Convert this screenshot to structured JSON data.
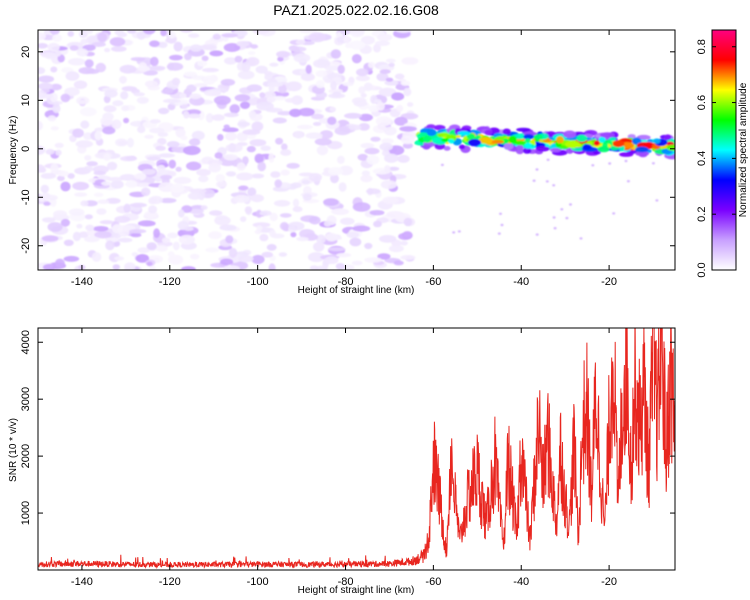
{
  "title": "PAZ1.2025.022.02.16.G08",
  "chart_data": [
    {
      "type": "heatmap",
      "xlabel": "Height of straight line (km)",
      "ylabel": "Frequency (Hz)",
      "xlim": [
        -150,
        -5
      ],
      "ylim": [
        -25,
        24.5
      ],
      "x_ticks": [
        -140,
        -120,
        -100,
        -80,
        -60,
        -40,
        -20
      ],
      "y_ticks": [
        -20,
        -10,
        0,
        10,
        20
      ],
      "colorbar": {
        "label": "Normalized spectral amplitude",
        "range": [
          0,
          0.86
        ],
        "ticks": [
          0.0,
          0.2,
          0.4,
          0.6,
          0.8
        ],
        "colors": [
          "#ffffff",
          "#c8a0ff",
          "#7a00ff",
          "#0000ff",
          "#00ffff",
          "#00ff00",
          "#ffff00",
          "#ff0000",
          "#ff0080"
        ]
      },
      "regions": [
        {
          "x_range": [
            -150,
            -65
          ],
          "freq_range": [
            -25,
            24.5
          ],
          "amplitude_range": [
            0.0,
            0.1
          ]
        },
        {
          "x_range": [
            -63,
            -5
          ],
          "ridge_freq_start": 2.5,
          "ridge_freq_end": 0.5,
          "amplitude_range": [
            0.2,
            0.86
          ]
        }
      ]
    },
    {
      "type": "line",
      "xlabel": "Height of straight line (km)",
      "ylabel": "SNR (10 * v/v)",
      "xlim": [
        -150,
        -5
      ],
      "ylim": [
        0,
        4250
      ],
      "x_ticks": [
        -140,
        -120,
        -100,
        -80,
        -60,
        -40,
        -20
      ],
      "y_ticks": [
        1000,
        2000,
        3000,
        4000
      ],
      "color": "#e8261f",
      "series_points": [
        [
          -150,
          100
        ],
        [
          -140,
          110
        ],
        [
          -130,
          100
        ],
        [
          -120,
          90
        ],
        [
          -110,
          95
        ],
        [
          -100,
          100
        ],
        [
          -90,
          95
        ],
        [
          -80,
          100
        ],
        [
          -70,
          110
        ],
        [
          -65,
          150
        ],
        [
          -62,
          250
        ],
        [
          -61,
          600
        ],
        [
          -60,
          1950
        ],
        [
          -59,
          1500
        ],
        [
          -57,
          300
        ],
        [
          -56,
          2050
        ],
        [
          -55,
          1200
        ],
        [
          -54,
          500
        ],
        [
          -52,
          1300
        ],
        [
          -50,
          1750
        ],
        [
          -48,
          800
        ],
        [
          -46,
          1900
        ],
        [
          -45,
          1100
        ],
        [
          -44,
          400
        ],
        [
          -43,
          1950
        ],
        [
          -41,
          600
        ],
        [
          -40,
          2200
        ],
        [
          -39,
          1300
        ],
        [
          -38,
          500
        ],
        [
          -36,
          2600
        ],
        [
          -35,
          1500
        ],
        [
          -34,
          2350
        ],
        [
          -32,
          800
        ],
        [
          -31,
          2150
        ],
        [
          -30,
          1200
        ],
        [
          -29,
          800
        ],
        [
          -28,
          2200
        ],
        [
          -27,
          600
        ],
        [
          -26,
          2500
        ],
        [
          -25,
          2800
        ],
        [
          -24,
          1300
        ],
        [
          -23,
          3100
        ],
        [
          -22,
          1800
        ],
        [
          -21,
          700
        ],
        [
          -20,
          2500
        ],
        [
          -19,
          3950
        ],
        [
          -18,
          1100
        ],
        [
          -17,
          2900
        ],
        [
          -16,
          3750
        ],
        [
          -15,
          1800
        ],
        [
          -14,
          3400
        ],
        [
          -13,
          2500
        ],
        [
          -12,
          3200
        ],
        [
          -11,
          1700
        ],
        [
          -10,
          3700
        ],
        [
          -9,
          2600
        ],
        [
          -8,
          4200
        ],
        [
          -7,
          2000
        ],
        [
          -6,
          3500
        ],
        [
          -5,
          2400
        ]
      ]
    }
  ]
}
